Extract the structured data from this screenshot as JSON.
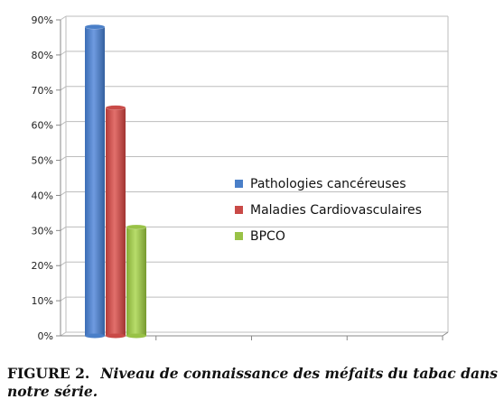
{
  "chart_data": {
    "type": "bar",
    "categories": [
      ""
    ],
    "series": [
      {
        "name": "Pathologies cancéreuses",
        "values": [
          88
        ],
        "color": "#4a7fc8"
      },
      {
        "name": "Maladies Cardiovasculaires",
        "values": [
          65
        ],
        "color": "#c94a47"
      },
      {
        "name": "BPCO",
        "values": [
          31
        ],
        "color": "#99c247"
      }
    ],
    "ylim": [
      0,
      90
    ],
    "yticks": [
      "0%",
      "10%",
      "20%",
      "30%",
      "40%",
      "50%",
      "60%",
      "70%",
      "80%",
      "90%"
    ],
    "grid": true,
    "legend_position": "right"
  },
  "caption": {
    "label": "FIGURE 2.",
    "text": "Niveau de connaissance des méfaits du tabac dans notre série."
  }
}
